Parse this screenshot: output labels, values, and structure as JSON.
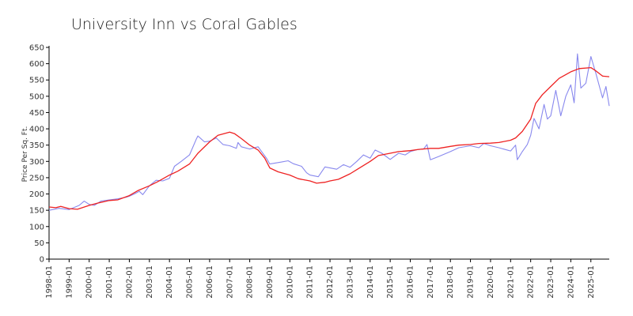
{
  "chart_data": {
    "type": "line",
    "title": "University Inn vs Coral Gables",
    "ylabel": "Price Per Sq. Ft.",
    "xlabel": "",
    "ylim": [
      0,
      650
    ],
    "yticks": [
      0,
      50,
      100,
      150,
      200,
      250,
      300,
      350,
      400,
      450,
      500,
      550,
      600,
      650
    ],
    "xlim": [
      "1998-01",
      "2025-12"
    ],
    "xticks": [
      "1998-01",
      "1999-01",
      "2000-01",
      "2001-01",
      "2002-01",
      "2003-01",
      "2004-01",
      "2005-01",
      "2006-01",
      "2007-01",
      "2008-01",
      "2009-01",
      "2010-01",
      "2011-01",
      "2012-01",
      "2013-01",
      "2014-01",
      "2015-01",
      "2016-01",
      "2017-01",
      "2018-01",
      "2019-01",
      "2020-01",
      "2021-01",
      "2022-01",
      "2023-01",
      "2024-01",
      "2025-01"
    ],
    "grid": false,
    "legend": "none",
    "series": [
      {
        "color": "#8888ee",
        "points": [
          [
            "1998-01",
            150
          ],
          [
            "1998-07",
            156
          ],
          [
            "1999-01",
            152
          ],
          [
            "1999-07",
            165
          ],
          [
            "1999-10",
            178
          ],
          [
            "2000-01",
            168
          ],
          [
            "2000-04",
            165
          ],
          [
            "2000-08",
            178
          ],
          [
            "2001-01",
            182
          ],
          [
            "2001-06",
            185
          ],
          [
            "2001-11",
            190
          ],
          [
            "2002-01",
            193
          ],
          [
            "2002-04",
            200
          ],
          [
            "2002-07",
            208
          ],
          [
            "2002-09",
            198
          ],
          [
            "2003-01",
            225
          ],
          [
            "2003-05",
            242
          ],
          [
            "2003-09",
            240
          ],
          [
            "2004-01",
            248
          ],
          [
            "2004-04",
            285
          ],
          [
            "2004-08",
            300
          ],
          [
            "2005-01",
            320
          ],
          [
            "2005-05",
            368
          ],
          [
            "2005-06",
            378
          ],
          [
            "2005-10",
            360
          ],
          [
            "2006-01",
            362
          ],
          [
            "2006-05",
            372
          ],
          [
            "2006-09",
            352
          ],
          [
            "2007-01",
            348
          ],
          [
            "2007-05",
            340
          ],
          [
            "2007-06",
            358
          ],
          [
            "2007-08",
            345
          ],
          [
            "2008-01",
            338
          ],
          [
            "2008-06",
            345
          ],
          [
            "2008-11",
            310
          ],
          [
            "2009-01",
            292
          ],
          [
            "2009-08",
            298
          ],
          [
            "2009-12",
            302
          ],
          [
            "2010-03",
            293
          ],
          [
            "2010-08",
            285
          ],
          [
            "2010-11",
            265
          ],
          [
            "2011-01",
            258
          ],
          [
            "2011-06",
            253
          ],
          [
            "2011-10",
            283
          ],
          [
            "2012-01",
            280
          ],
          [
            "2012-05",
            276
          ],
          [
            "2012-09",
            290
          ],
          [
            "2013-01",
            282
          ],
          [
            "2013-05",
            300
          ],
          [
            "2013-09",
            320
          ],
          [
            "2014-01",
            310
          ],
          [
            "2014-04",
            335
          ],
          [
            "2014-08",
            325
          ],
          [
            "2015-01",
            306
          ],
          [
            "2015-06",
            325
          ],
          [
            "2015-10",
            320
          ],
          [
            "2016-01",
            330
          ],
          [
            "2016-05",
            336
          ],
          [
            "2016-09",
            338
          ],
          [
            "2016-11",
            352
          ],
          [
            "2017-01",
            305
          ],
          [
            "2017-06",
            315
          ],
          [
            "2018-01",
            330
          ],
          [
            "2018-06",
            342
          ],
          [
            "2019-01",
            348
          ],
          [
            "2019-06",
            342
          ],
          [
            "2019-09",
            355
          ],
          [
            "2020-01",
            348
          ],
          [
            "2020-06",
            342
          ],
          [
            "2021-01",
            332
          ],
          [
            "2021-04",
            350
          ],
          [
            "2021-05",
            305
          ],
          [
            "2021-08",
            330
          ],
          [
            "2021-11",
            352
          ],
          [
            "2022-01",
            380
          ],
          [
            "2022-03",
            432
          ],
          [
            "2022-06",
            400
          ],
          [
            "2022-09",
            475
          ],
          [
            "2022-11",
            430
          ],
          [
            "2023-01",
            440
          ],
          [
            "2023-04",
            518
          ],
          [
            "2023-07",
            440
          ],
          [
            "2023-10",
            500
          ],
          [
            "2024-01",
            535
          ],
          [
            "2024-03",
            480
          ],
          [
            "2024-05",
            630
          ],
          [
            "2024-07",
            525
          ],
          [
            "2024-10",
            540
          ],
          [
            "2025-01",
            622
          ],
          [
            "2025-04",
            570
          ],
          [
            "2025-08",
            495
          ],
          [
            "2025-10",
            530
          ],
          [
            "2025-12",
            470
          ]
        ]
      },
      {
        "color": "#ee2222",
        "points": [
          [
            "1998-01",
            160
          ],
          [
            "1998-05",
            158
          ],
          [
            "1998-08",
            162
          ],
          [
            "1999-01",
            155
          ],
          [
            "1999-06",
            153
          ],
          [
            "2000-01",
            165
          ],
          [
            "2000-06",
            172
          ],
          [
            "2001-01",
            180
          ],
          [
            "2001-06",
            182
          ],
          [
            "2002-01",
            195
          ],
          [
            "2002-06",
            210
          ],
          [
            "2003-01",
            225
          ],
          [
            "2003-06",
            238
          ],
          [
            "2004-01",
            258
          ],
          [
            "2004-06",
            270
          ],
          [
            "2005-01",
            292
          ],
          [
            "2005-06",
            325
          ],
          [
            "2006-01",
            360
          ],
          [
            "2006-06",
            380
          ],
          [
            "2007-01",
            390
          ],
          [
            "2007-04",
            385
          ],
          [
            "2007-08",
            370
          ],
          [
            "2008-01",
            350
          ],
          [
            "2008-06",
            335
          ],
          [
            "2008-10",
            310
          ],
          [
            "2009-01",
            280
          ],
          [
            "2009-06",
            268
          ],
          [
            "2010-01",
            258
          ],
          [
            "2010-06",
            247
          ],
          [
            "2011-01",
            240
          ],
          [
            "2011-05",
            233
          ],
          [
            "2011-10",
            236
          ],
          [
            "2012-01",
            240
          ],
          [
            "2012-06",
            245
          ],
          [
            "2013-01",
            262
          ],
          [
            "2013-06",
            278
          ],
          [
            "2014-01",
            300
          ],
          [
            "2014-06",
            318
          ],
          [
            "2015-01",
            325
          ],
          [
            "2015-06",
            330
          ],
          [
            "2016-01",
            333
          ],
          [
            "2016-06",
            337
          ],
          [
            "2017-01",
            340
          ],
          [
            "2017-06",
            340
          ],
          [
            "2018-01",
            346
          ],
          [
            "2018-06",
            350
          ],
          [
            "2019-01",
            352
          ],
          [
            "2019-06",
            355
          ],
          [
            "2020-01",
            356
          ],
          [
            "2020-06",
            358
          ],
          [
            "2021-01",
            365
          ],
          [
            "2021-04",
            372
          ],
          [
            "2021-08",
            392
          ],
          [
            "2022-01",
            430
          ],
          [
            "2022-04",
            478
          ],
          [
            "2022-08",
            505
          ],
          [
            "2023-01",
            530
          ],
          [
            "2023-06",
            555
          ],
          [
            "2024-01",
            575
          ],
          [
            "2024-06",
            585
          ],
          [
            "2025-01",
            588
          ],
          [
            "2025-04",
            578
          ],
          [
            "2025-08",
            562
          ],
          [
            "2025-12",
            560
          ]
        ]
      }
    ]
  }
}
